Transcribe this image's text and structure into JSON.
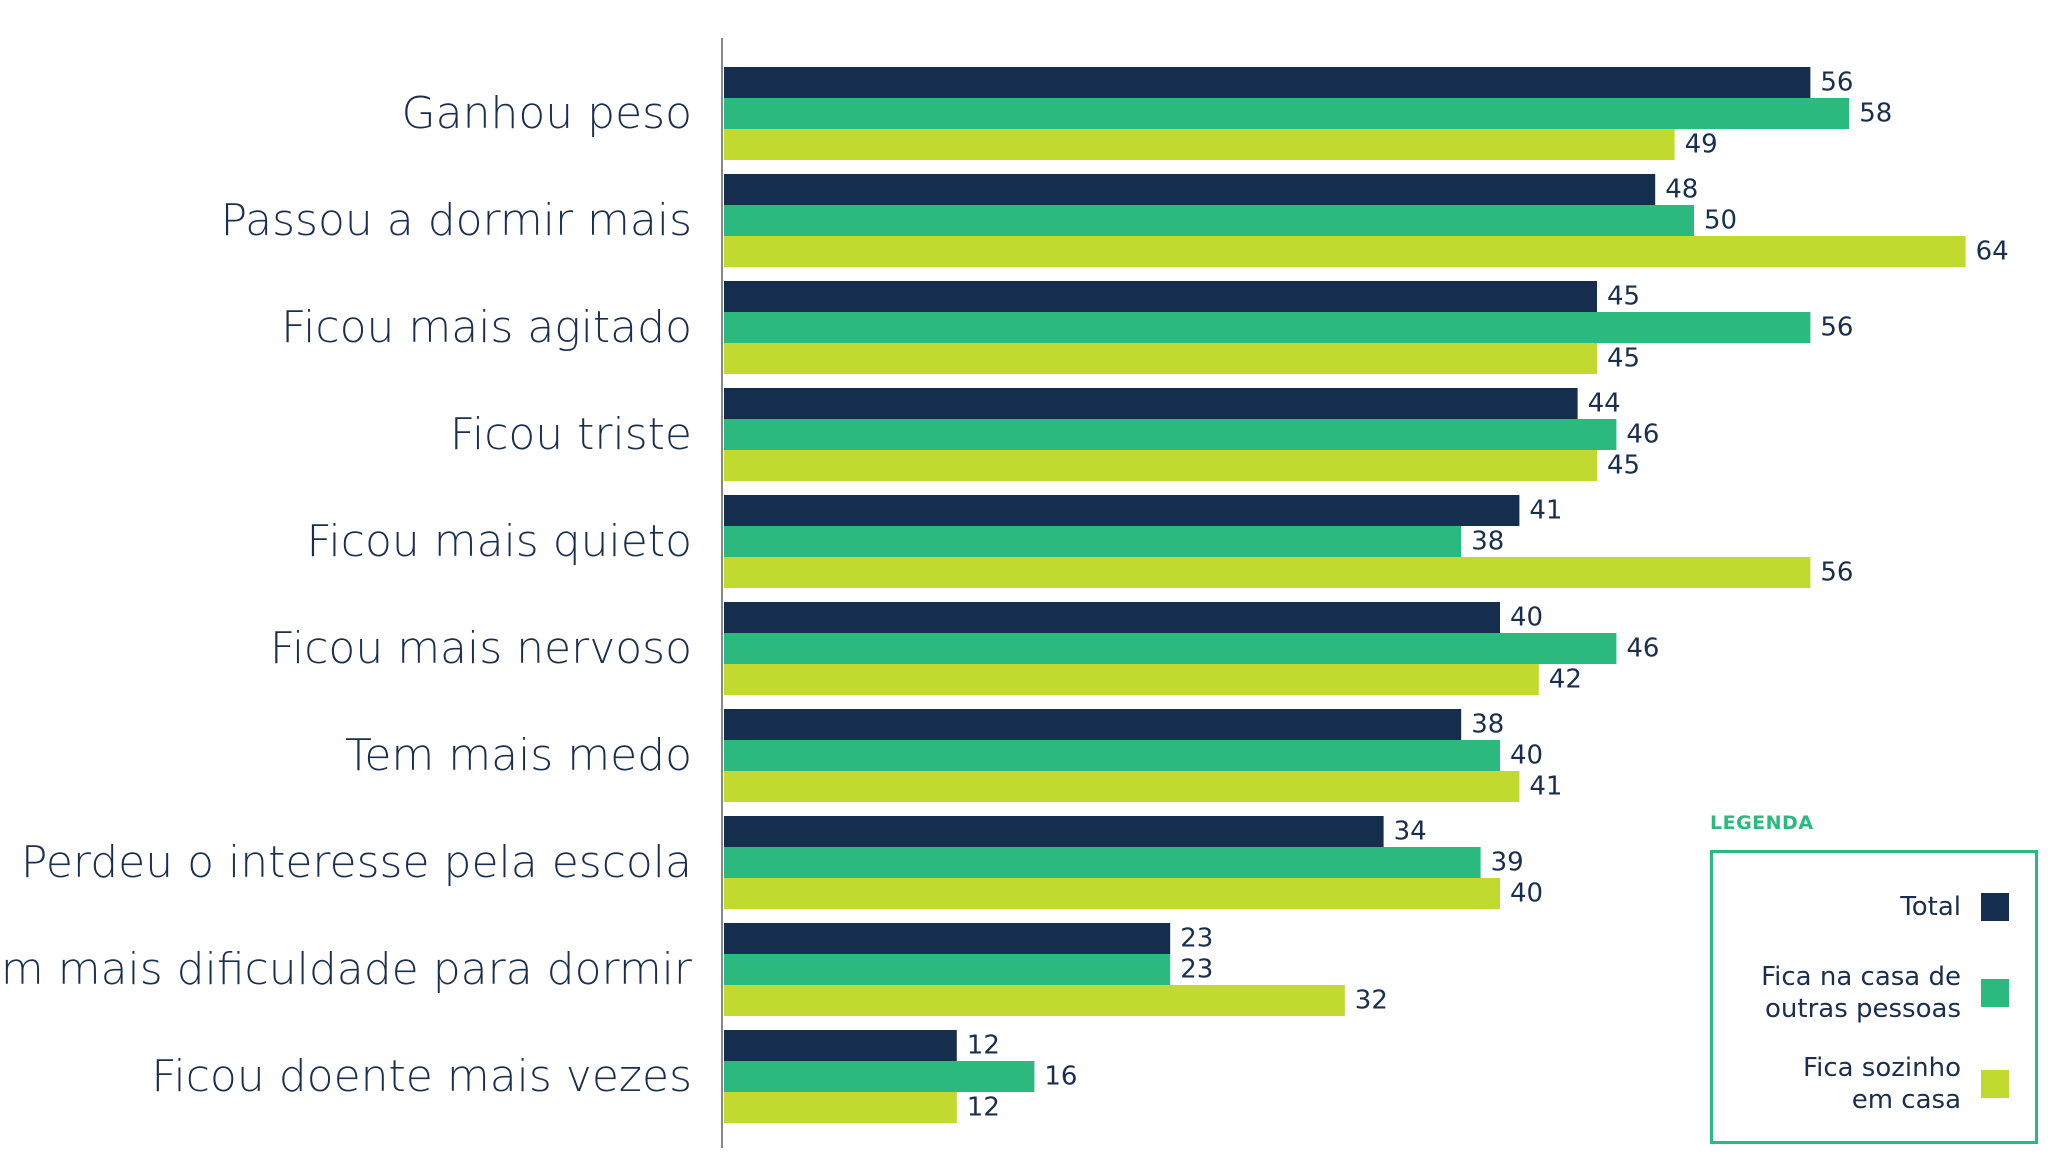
{
  "colors": {
    "total": "#152e4d",
    "fica_casa_outras": "#2bb97d",
    "fica_sozinho": "#c2d92f",
    "text": "#1a2e4d",
    "axis": "#888888",
    "legend_border": "#2bb97d"
  },
  "legend": {
    "title": "LEGENDA",
    "items": [
      {
        "label": "Total",
        "color": "#152e4d"
      },
      {
        "label": "Fica na casa de\noutras pessoas",
        "color": "#2bb97d"
      },
      {
        "label": "Fica sozinho\nem casa",
        "color": "#c2d92f"
      }
    ]
  },
  "chart_data": {
    "type": "bar",
    "orientation": "horizontal",
    "categories": [
      "Ganhou peso",
      "Passou a dormir mais",
      "Ficou mais agitado",
      "Ficou triste",
      "Ficou mais quieto",
      "Ficou mais nervoso",
      "Tem mais medo",
      "Perdeu o interesse pela escola",
      "Tem mais dificuldade para dormir",
      "Ficou doente mais vezes"
    ],
    "series": [
      {
        "name": "Total",
        "values": [
          56,
          48,
          45,
          44,
          41,
          40,
          38,
          34,
          23,
          12
        ]
      },
      {
        "name": "Fica na casa de outras pessoas",
        "values": [
          58,
          50,
          56,
          46,
          38,
          46,
          40,
          39,
          23,
          16
        ]
      },
      {
        "name": "Fica sozinho em casa",
        "values": [
          49,
          64,
          45,
          45,
          56,
          42,
          41,
          40,
          32,
          12
        ]
      }
    ],
    "title": "",
    "xlabel": "",
    "ylabel": "",
    "xlim": [
      0,
      70
    ],
    "grid": false,
    "legend_position": "bottom-right"
  }
}
